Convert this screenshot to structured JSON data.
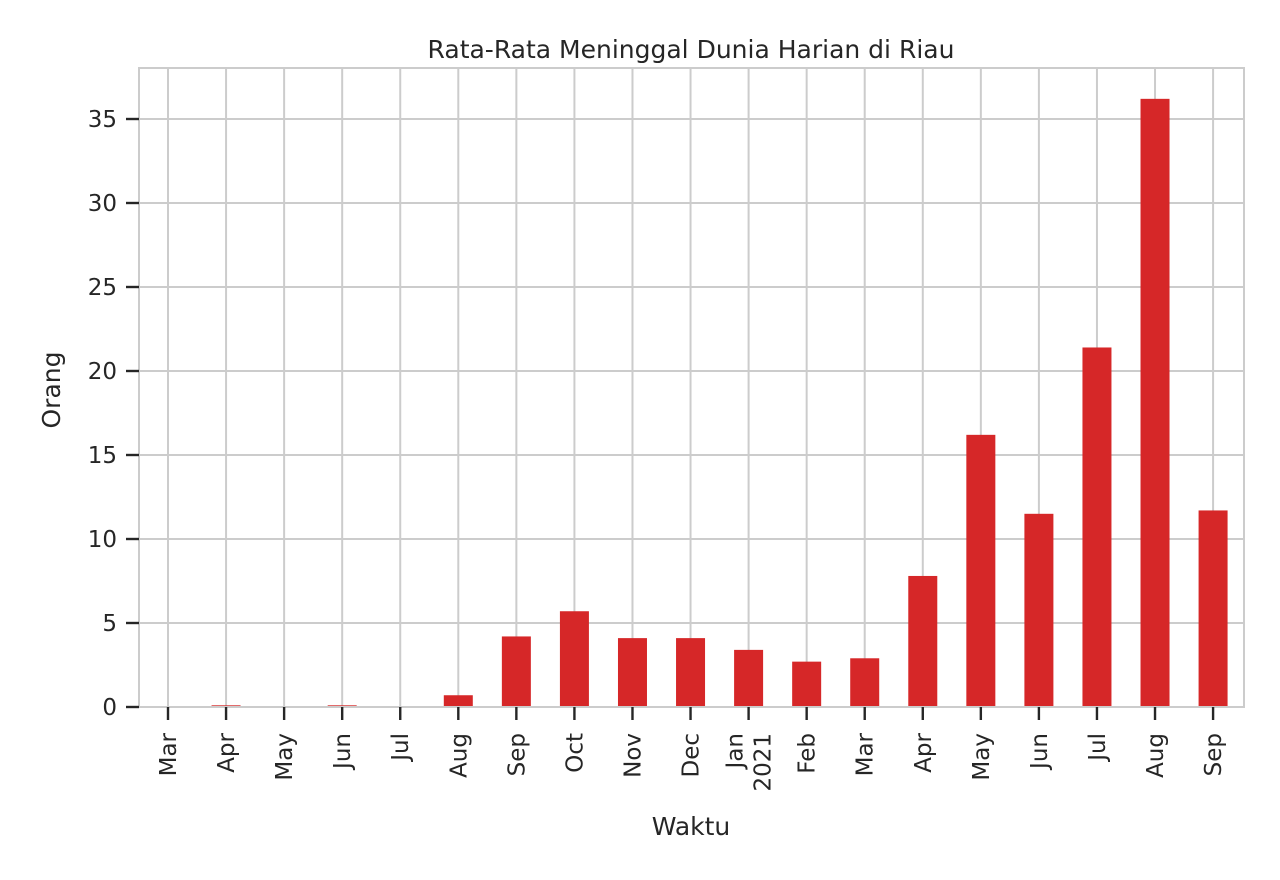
{
  "chart_data": {
    "type": "bar",
    "title": "Rata-Rata Meninggal Dunia Harian di Riau",
    "xlabel": "Waktu",
    "ylabel": "Orang",
    "ylim": [
      0,
      38
    ],
    "yticks": [
      0,
      5,
      10,
      15,
      20,
      25,
      30,
      35
    ],
    "grid": true,
    "categories": [
      [
        "Mar"
      ],
      [
        "Apr"
      ],
      [
        "May"
      ],
      [
        "Jun"
      ],
      [
        "Jul"
      ],
      [
        "Aug"
      ],
      [
        "Sep"
      ],
      [
        "Oct"
      ],
      [
        "Nov"
      ],
      [
        "Dec"
      ],
      [
        "Jan",
        "2021"
      ],
      [
        "Feb"
      ],
      [
        "Mar"
      ],
      [
        "Apr"
      ],
      [
        "May"
      ],
      [
        "Jun"
      ],
      [
        "Jul"
      ],
      [
        "Aug"
      ],
      [
        "Sep"
      ]
    ],
    "values": [
      0.0,
      0.1,
      0.0,
      0.1,
      0.0,
      0.7,
      4.2,
      5.7,
      4.1,
      4.1,
      3.4,
      2.7,
      2.9,
      7.8,
      16.2,
      11.5,
      21.4,
      36.2,
      11.7
    ],
    "bar_color": "#d62728"
  }
}
